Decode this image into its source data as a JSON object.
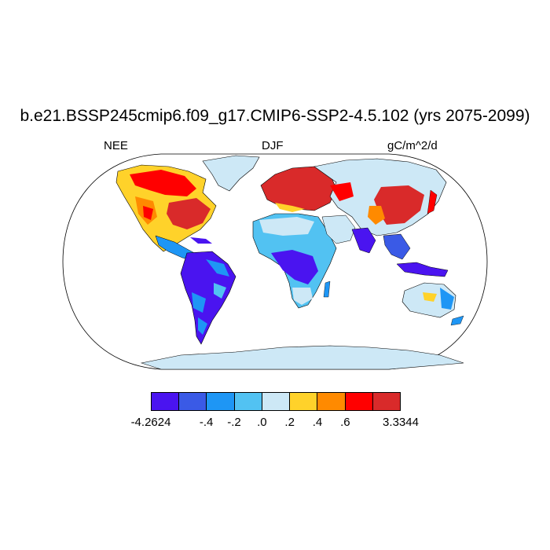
{
  "title": "b.e21.BSSP245cmip6.f09_g17.CMIP6-SSP2-4.5.102 (yrs 2075-2099)",
  "left_label": "NEE",
  "center_label": "DJF",
  "right_label": "gC/m^2/d",
  "colorbar": {
    "colors": [
      "#4a14f0",
      "#3a5ae6",
      "#1e96f5",
      "#52c2f2",
      "#cde8f6",
      "#ffd22a",
      "#ff8a00",
      "#ff0000",
      "#d92a2a"
    ],
    "labels": [
      "-4.2624",
      "-.4",
      "-.2",
      ".0",
      ".2",
      ".4",
      ".6",
      "3.3344"
    ]
  },
  "map_colors": {
    "ocean": "#ffffff",
    "outline": "#000000",
    "land_default": "#cde8f6",
    "antarctica": "#cde8f6"
  }
}
